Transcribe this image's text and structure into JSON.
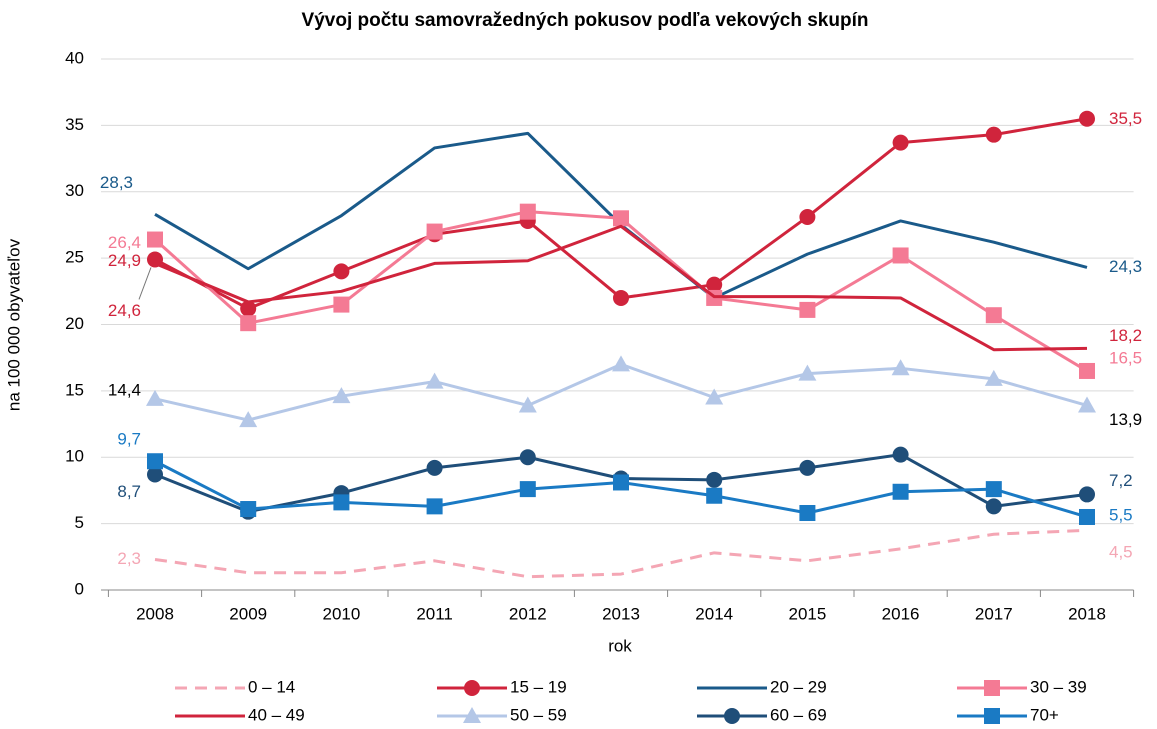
{
  "chart_data": {
    "type": "line",
    "title": "Vývoj počtu samovražedných pokusov podľa vekových skupín",
    "x_label": "rok",
    "y_label": "na 100 000 obyvateľov",
    "categories": [
      "2008",
      "2009",
      "2010",
      "2011",
      "2012",
      "2013",
      "2014",
      "2015",
      "2016",
      "2017",
      "2018"
    ],
    "ylim": [
      0,
      40
    ],
    "yticks": [
      0,
      5,
      10,
      15,
      20,
      25,
      30,
      35,
      40
    ],
    "grid": true,
    "series": [
      {
        "name": "0 – 14",
        "color": "#f4a6b4",
        "dash": true,
        "marker": "none",
        "values": [
          2.3,
          1.3,
          1.3,
          2.2,
          1.0,
          1.2,
          2.8,
          2.2,
          3.1,
          4.2,
          4.5
        ],
        "value_labels": [
          "2,3",
          null,
          null,
          null,
          null,
          null,
          null,
          null,
          null,
          null,
          "4,5"
        ]
      },
      {
        "name": "15 – 19",
        "color": "#d0243c",
        "marker": "circle",
        "values": [
          24.9,
          21.2,
          24.0,
          26.8,
          27.8,
          22.0,
          23.0,
          28.1,
          33.7,
          34.3,
          35.5
        ],
        "value_labels": [
          "24,9",
          null,
          null,
          null,
          null,
          null,
          null,
          null,
          null,
          null,
          "35,5"
        ]
      },
      {
        "name": "20 – 29",
        "color": "#1a5a8a",
        "marker": "none",
        "values": [
          28.3,
          24.2,
          28.2,
          33.3,
          34.4,
          27.5,
          22.0,
          25.3,
          27.8,
          26.2,
          24.3
        ],
        "value_labels": [
          "28,3",
          null,
          null,
          null,
          null,
          null,
          null,
          null,
          null,
          null,
          "24,3"
        ]
      },
      {
        "name": "30 – 39",
        "color": "#f47a94",
        "marker": "square",
        "values": [
          26.4,
          20.1,
          21.5,
          27.0,
          28.5,
          28.0,
          22.0,
          21.1,
          25.2,
          20.7,
          16.5
        ],
        "value_labels": [
          "26,4",
          null,
          null,
          null,
          null,
          null,
          null,
          null,
          null,
          null,
          "16,5"
        ]
      },
      {
        "name": "40 – 49",
        "color": "#d0243c",
        "marker": "none",
        "values": [
          24.6,
          21.7,
          22.5,
          24.6,
          24.8,
          27.4,
          22.1,
          22.1,
          22.0,
          18.1,
          18.2
        ],
        "value_labels": [
          "24,6",
          null,
          null,
          null,
          null,
          null,
          null,
          null,
          null,
          null,
          "18,2"
        ]
      },
      {
        "name": "50 – 59",
        "color": "#b4c7e7",
        "label_color": "#000000",
        "marker": "triangle",
        "values": [
          14.4,
          12.8,
          14.6,
          15.7,
          13.9,
          17.0,
          14.5,
          16.3,
          16.7,
          15.9,
          13.9
        ],
        "value_labels": [
          "14,4",
          null,
          null,
          null,
          null,
          null,
          null,
          null,
          null,
          null,
          "13,9"
        ]
      },
      {
        "name": "60 – 69",
        "color": "#1f4e79",
        "marker": "circle",
        "values": [
          8.7,
          5.9,
          7.3,
          9.2,
          10.0,
          8.4,
          8.3,
          9.2,
          10.2,
          6.3,
          7.2
        ],
        "value_labels": [
          "8,7",
          null,
          null,
          null,
          null,
          null,
          null,
          null,
          null,
          null,
          "7,2"
        ]
      },
      {
        "name": "70+",
        "color": "#1a7ac4",
        "marker": "square",
        "values": [
          9.7,
          6.1,
          6.6,
          6.3,
          7.6,
          8.1,
          7.1,
          5.8,
          7.4,
          7.6,
          5.5
        ],
        "value_labels": [
          "9,7",
          null,
          null,
          null,
          null,
          null,
          null,
          null,
          null,
          null,
          "5,5"
        ]
      }
    ]
  }
}
